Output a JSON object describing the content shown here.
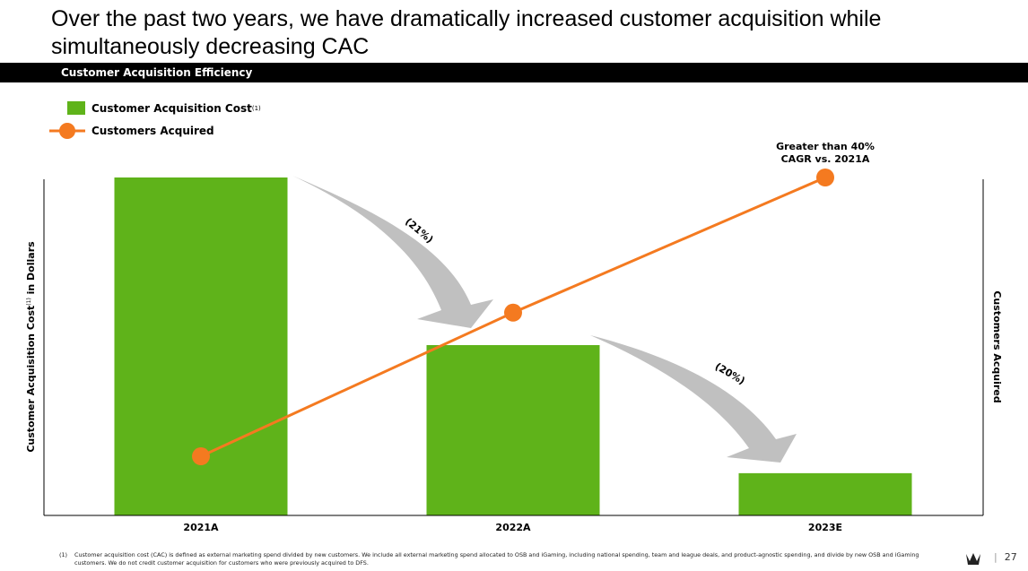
{
  "title": "Over the past two years, we have dramatically increased customer acquisition while simultaneously decreasing CAC",
  "section_header": "Customer Acquisition Efficiency",
  "footnote": {
    "marker": "(1)",
    "text": "Customer acquisition cost (CAC) is defined as external marketing spend divided by new customers. We include all external marketing spend allocated to OSB and iGaming, including national spending, team and league deals, and product-agnostic spending, and divide by new OSB and iGaming customers. We do not credit customer acquisition for customers who were previously acquired to DFS."
  },
  "page_number": "27",
  "colors": {
    "bar": "#5fb31a",
    "line": "#f47a20",
    "arrow": "#c0c0c0"
  },
  "chart_data": {
    "type": "bar",
    "categories": [
      "2021A",
      "2022A",
      "2023E"
    ],
    "series": [
      {
        "name": "Customer Acquisition Cost",
        "name_sup": "(1)",
        "type": "bar",
        "axis": "left",
        "values": [
          100,
          50.4,
          12.5
        ]
      },
      {
        "name": "Customers Acquired",
        "type": "line",
        "axis": "right",
        "values": [
          17.5,
          60,
          100
        ]
      }
    ],
    "ylabel": "Customer Acquisition Cost",
    "ylabel_sup": "(1)",
    "ylabel_suffix": " in Dollars",
    "y2label": "Customers Acquired",
    "ylim": [
      0,
      100
    ],
    "note": "Values are relative; no axis ticks printed",
    "legend_position": "top-left",
    "grid": false,
    "annotations": {
      "cagr": [
        "Greater than 40%",
        "CAGR vs. 2021A"
      ],
      "change_2022": "(21%)",
      "change_2023": "(20%)"
    }
  }
}
